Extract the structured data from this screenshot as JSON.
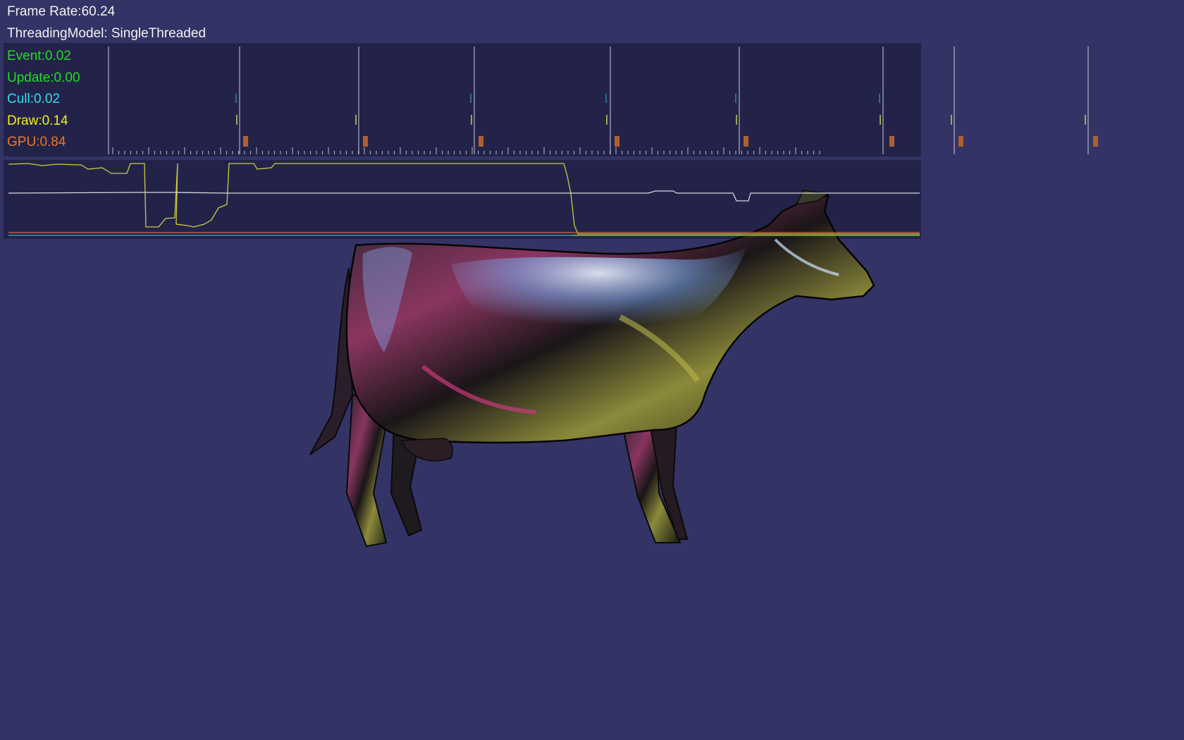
{
  "hud": {
    "frame_rate_label": "Frame Rate:60.24",
    "threading_label": "ThreadingModel: SingleThreaded"
  },
  "stats": {
    "items": [
      {
        "label": "Event:0.02",
        "color": "#22dd22"
      },
      {
        "label": "Update:0.00",
        "color": "#22dd22"
      },
      {
        "label": "Cull:0.02",
        "color": "#33ddee"
      },
      {
        "label": "Draw:0.14",
        "color": "#eeee22"
      },
      {
        "label": "GPU:0.84",
        "color": "#ee7722"
      }
    ]
  },
  "scene": {
    "object": "cow-model",
    "background_color": "#333366"
  }
}
